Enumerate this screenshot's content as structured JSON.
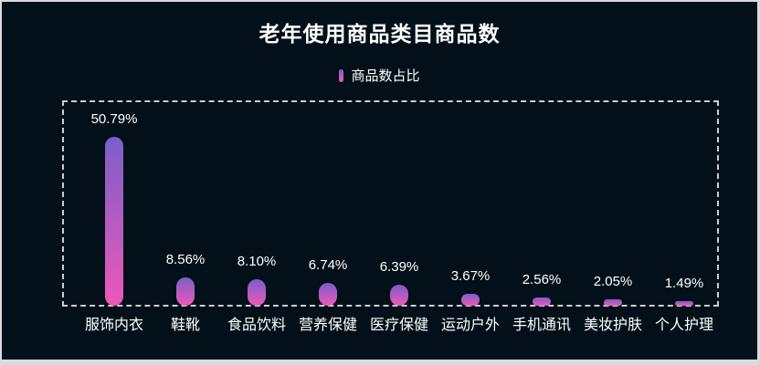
{
  "title": "老年使用商品类目商品数",
  "legend": {
    "label": "商品数占比"
  },
  "colors": {
    "background": "#031019",
    "frame": "#d8dbde",
    "dashed_border": "#c9ced3",
    "bar_gradient_top": "#7a5fca",
    "bar_gradient_bottom": "#ee58b8",
    "text": "#ffffff"
  },
  "chart_data": {
    "type": "bar",
    "title": "老年使用商品类目商品数",
    "legend_entries": [
      "商品数占比"
    ],
    "legend_position": "top-center",
    "grid": false,
    "axes_visible": false,
    "unit": "%",
    "ylim": [
      0,
      55
    ],
    "categories": [
      "服饰内衣",
      "鞋靴",
      "食品饮料",
      "营养保健",
      "医疗保健",
      "运动户外",
      "手机通讯",
      "美妆护肤",
      "个人护理"
    ],
    "values": [
      50.79,
      8.56,
      8.1,
      6.74,
      6.39,
      3.67,
      2.56,
      2.05,
      1.49
    ],
    "value_labels": [
      "50.79%",
      "8.56%",
      "8.10%",
      "6.74%",
      "6.39%",
      "3.67%",
      "2.56%",
      "2.05%",
      "1.49%"
    ]
  }
}
